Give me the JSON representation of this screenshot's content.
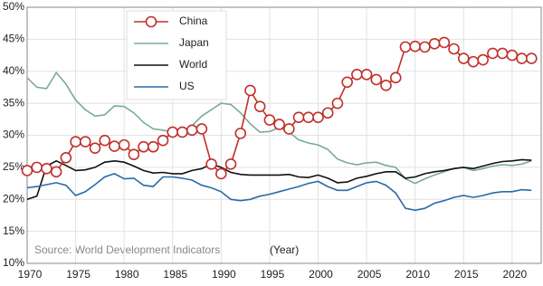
{
  "chart_data": {
    "type": "line",
    "source": "Source: World Development Indicators",
    "x_label": "(Year)",
    "x": [
      1970,
      1971,
      1972,
      1973,
      1974,
      1975,
      1976,
      1977,
      1978,
      1979,
      1980,
      1981,
      1982,
      1983,
      1984,
      1985,
      1986,
      1987,
      1988,
      1989,
      1990,
      1991,
      1992,
      1993,
      1994,
      1995,
      1996,
      1997,
      1998,
      1999,
      2000,
      2001,
      2002,
      2003,
      2004,
      2005,
      2006,
      2007,
      2008,
      2009,
      2010,
      2011,
      2012,
      2013,
      2014,
      2015,
      2016,
      2017,
      2018,
      2019,
      2020,
      2021,
      2022
    ],
    "series": [
      {
        "name": "China",
        "color": "#c0302b",
        "markers": true,
        "values": [
          24.5,
          25,
          24.8,
          24.3,
          26.5,
          29,
          29,
          28,
          29.2,
          28.3,
          28.5,
          27,
          28.2,
          28.2,
          29.2,
          30.5,
          30.5,
          30.8,
          31,
          25.5,
          24,
          25.5,
          30.3,
          37,
          34.5,
          32.4,
          31.7,
          31,
          32.8,
          32.8,
          32.8,
          33.5,
          35,
          38.3,
          39.5,
          39.5,
          38.7,
          37.8,
          39,
          43.8,
          43.9,
          43.8,
          44.3,
          44.5,
          43.5,
          42,
          41.5,
          41.8,
          42.8,
          42.8,
          42.5,
          42,
          42
        ]
      },
      {
        "name": "Japan",
        "color": "#7aab94",
        "markers": false,
        "values": [
          39,
          37.5,
          37.3,
          39.8,
          38,
          35.5,
          34,
          33,
          33.2,
          34.6,
          34.5,
          33.5,
          32,
          31,
          30.8,
          30.5,
          30.5,
          31.5,
          33,
          34,
          35,
          34.8,
          33.5,
          31.8,
          30.5,
          30.6,
          31.2,
          30.5,
          29.3,
          28.8,
          28.5,
          27.8,
          26.3,
          25.7,
          25.4,
          25.7,
          25.8,
          25.3,
          25,
          23.2,
          22.5,
          23.2,
          23.8,
          24.3,
          24.8,
          25,
          24.5,
          24.8,
          25.2,
          25.4,
          25.3,
          25.5,
          26
        ]
      },
      {
        "name": "World",
        "color": "#111111",
        "markers": false,
        "values": [
          20,
          20.5,
          25.2,
          26,
          25.3,
          24.5,
          24.6,
          25,
          25.8,
          26,
          25.8,
          25.2,
          24.5,
          24.1,
          24.2,
          24,
          24,
          24.5,
          24.8,
          25.5,
          25,
          24.2,
          23.9,
          23.8,
          23.8,
          23.8,
          23.8,
          23.9,
          23.5,
          23.4,
          23.8,
          23.3,
          22.6,
          22.7,
          23.3,
          23.6,
          24,
          24.3,
          24.3,
          23.3,
          23.5,
          24,
          24.3,
          24.5,
          24.8,
          25,
          24.8,
          25.2,
          25.6,
          25.9,
          26,
          26.2,
          26.1
        ]
      },
      {
        "name": "US",
        "color": "#2a6ba8",
        "markers": false,
        "values": [
          21.8,
          22,
          22.3,
          22.6,
          22.2,
          20.6,
          21.2,
          22.3,
          23.5,
          24,
          23.2,
          23.3,
          22.2,
          22,
          23.5,
          23.5,
          23.3,
          23,
          22.2,
          21.8,
          21.2,
          20,
          19.8,
          20,
          20.5,
          20.8,
          21.2,
          21.6,
          22,
          22.5,
          22.8,
          22,
          21.4,
          21.4,
          22,
          22.6,
          22.8,
          22.2,
          21,
          18.6,
          18.3,
          18.6,
          19.4,
          19.8,
          20.3,
          20.6,
          20.3,
          20.6,
          21,
          21.2,
          21.2,
          21.5,
          21.4
        ]
      }
    ],
    "xlim": [
      1970,
      2023
    ],
    "xticks": [
      1970,
      1975,
      1980,
      1985,
      1990,
      1995,
      2000,
      2005,
      2010,
      2015,
      2020
    ],
    "ylim": [
      10,
      50
    ],
    "yticks": [
      {
        "value": 10,
        "label": "10%"
      },
      {
        "value": 15,
        "label": "15%"
      },
      {
        "value": 20,
        "label": "20%"
      },
      {
        "value": 25,
        "label": "25%"
      },
      {
        "value": 30,
        "label": "30%"
      },
      {
        "value": 35,
        "label": "35%"
      },
      {
        "value": 40,
        "label": "40%"
      },
      {
        "value": 45,
        "label": "45%"
      },
      {
        "value": 50,
        "label": "50%"
      }
    ],
    "grid": true
  }
}
